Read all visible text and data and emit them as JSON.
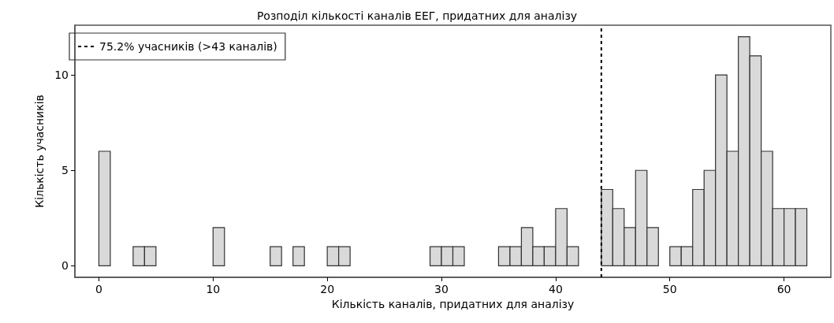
{
  "chart_data": {
    "type": "histogram",
    "title": "Розподіл кількості каналів ЕЕГ, придатних для аналізу",
    "xlabel": "Кількість каналів, придатних для аналізу",
    "ylabel": "Кількість учасників",
    "bins": [
      0,
      1,
      2,
      3,
      4,
      5,
      6,
      7,
      8,
      9,
      10,
      11,
      12,
      13,
      14,
      15,
      16,
      17,
      18,
      19,
      20,
      21,
      22,
      23,
      24,
      25,
      26,
      27,
      28,
      29,
      30,
      31,
      32,
      33,
      34,
      35,
      36,
      37,
      38,
      39,
      40,
      41,
      42,
      43,
      44,
      45,
      46,
      47,
      48,
      49,
      50,
      51,
      52,
      53,
      54,
      55,
      56,
      57,
      58,
      59,
      60,
      61,
      62
    ],
    "values": [
      6,
      0,
      0,
      1,
      1,
      0,
      0,
      0,
      0,
      0,
      2,
      0,
      0,
      0,
      0,
      1,
      0,
      1,
      0,
      0,
      1,
      1,
      0,
      0,
      0,
      0,
      0,
      0,
      0,
      1,
      1,
      1,
      0,
      0,
      0,
      1,
      1,
      2,
      1,
      1,
      3,
      1,
      0,
      0,
      4,
      3,
      2,
      5,
      2,
      0,
      1,
      1,
      4,
      5,
      10,
      6,
      12,
      11,
      6,
      3,
      3,
      3
    ],
    "color": "#d9d9d9",
    "xlim": [
      -2.1,
      64.1
    ],
    "xticks": [
      0,
      10,
      20,
      30,
      40,
      50,
      60
    ],
    "ylim": [
      -0.6,
      12.6
    ],
    "yticks": [
      0,
      5,
      10
    ],
    "ref_lines": [
      {
        "axis": "x",
        "value": 44,
        "label": "75.2% учасників (>43 каналів)",
        "color": "#000000",
        "line_style": "dashed"
      }
    ],
    "grid": false,
    "legend": "top left"
  }
}
